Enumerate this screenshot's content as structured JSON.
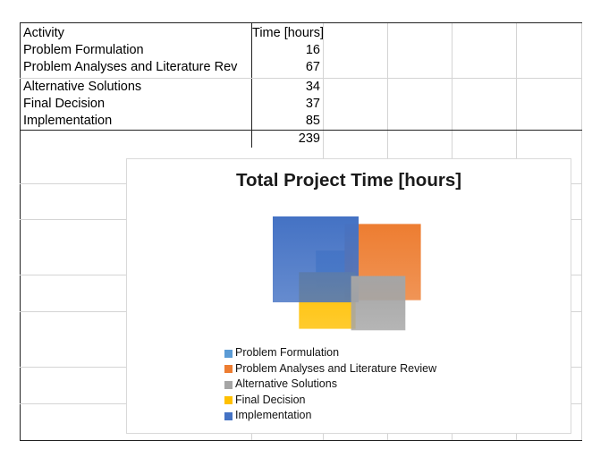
{
  "sheet": {
    "header": {
      "activity": "Activity",
      "time": "Time [hours]"
    },
    "rows": [
      {
        "activity": "Problem Formulation",
        "time": "16"
      },
      {
        "activity": "Problem Analyses and Literature Rev",
        "time": "67"
      },
      {
        "activity": "Alternative Solutions",
        "time": "34"
      },
      {
        "activity": "Final Decision",
        "time": "37"
      },
      {
        "activity": "Implementation",
        "time": "85"
      }
    ],
    "total": "239"
  },
  "chart_data": {
    "type": "area",
    "title": "Total Project Time [hours]",
    "categories": [
      "Problem Formulation",
      "Problem Analyses and Literature Review",
      "Alternative Solutions",
      "Final Decision",
      "Implementation"
    ],
    "values": [
      16,
      67,
      34,
      37,
      85
    ],
    "colors": [
      "#5b9bd5",
      "#ed7d31",
      "#a5a5a5",
      "#ffc000",
      "#4472c4"
    ],
    "legend_position": "bottom",
    "grid": false
  }
}
